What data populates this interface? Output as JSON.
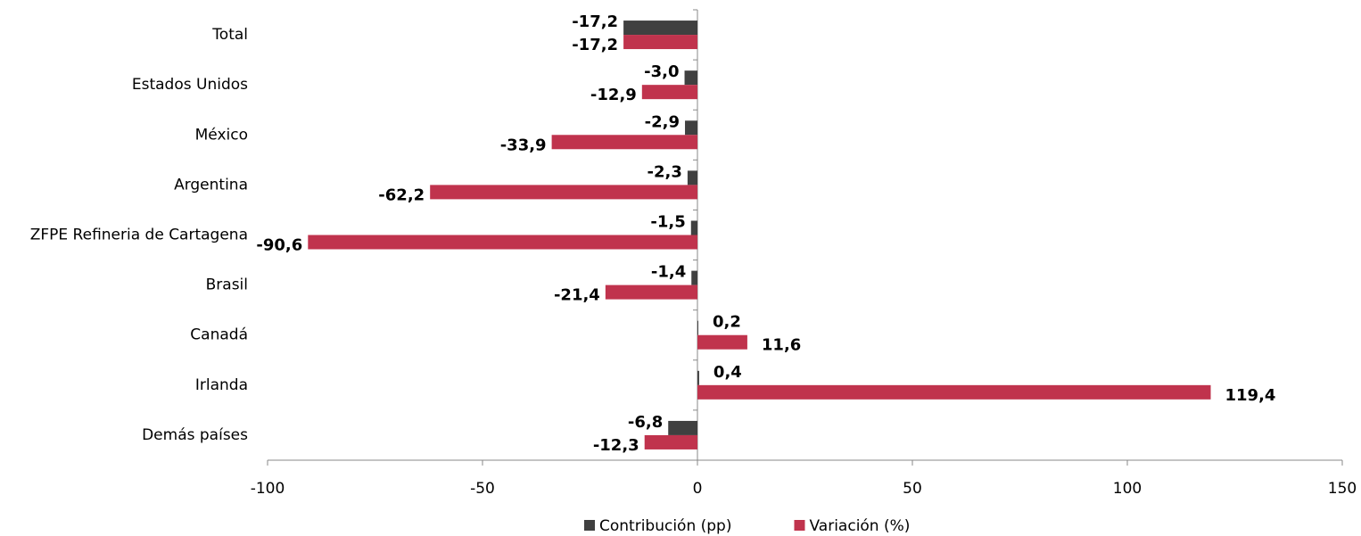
{
  "chart_data": {
    "type": "bar",
    "orientation": "horizontal",
    "categories": [
      "Total",
      "Estados Unidos",
      "México",
      "Argentina",
      "ZFPE Refineria de Cartagena",
      "Brasil",
      "Canadá",
      "Irlanda",
      "Demás países"
    ],
    "series": [
      {
        "name": "Contribución (pp)",
        "color": "#404040",
        "values": [
          -17.2,
          -3.0,
          -2.9,
          -2.3,
          -1.5,
          -1.4,
          0.2,
          0.4,
          -6.8
        ],
        "value_labels": [
          "-17,2",
          "-3,0",
          "-2,9",
          "-2,3",
          "-1,5",
          "-1,4",
          "0,2",
          "0,4",
          "-6,8"
        ]
      },
      {
        "name": "Variación (%)",
        "color": "#c0334d",
        "values": [
          -17.2,
          -12.9,
          -33.9,
          -62.2,
          -90.6,
          -21.4,
          11.6,
          119.4,
          -12.3
        ],
        "value_labels": [
          "-17,2",
          "-12,9",
          "-33,9",
          "-62,2",
          "-90,6",
          "-21,4",
          "11,6",
          "119,4",
          "-12,3"
        ]
      }
    ],
    "xlim": [
      -100,
      150
    ],
    "xticks": [
      -100,
      -50,
      0,
      50,
      100,
      150
    ],
    "legend": "bottom"
  }
}
